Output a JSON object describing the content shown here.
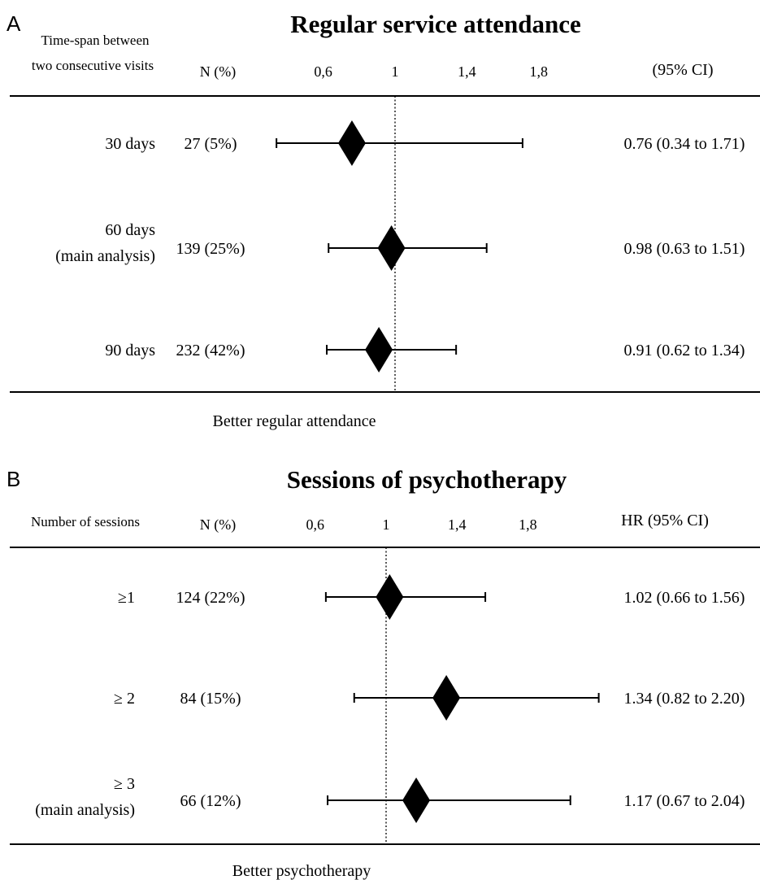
{
  "chart_data": [
    {
      "type": "forest",
      "panel_label": "A",
      "title": "Regular service attendance",
      "row_header_line1": "Time-span between",
      "row_header_line2": "two consecutive visits",
      "n_header": "N (%)",
      "ci_header": "(95% CI)",
      "tick_labels": [
        "0,6",
        "1",
        "1,4",
        "1,8"
      ],
      "ticks": [
        0.6,
        1.0,
        1.4,
        1.8
      ],
      "reference_line": 1.0,
      "footer": "Better regular attendance",
      "rows": [
        {
          "label_line1": "30 days",
          "label_line2": "",
          "n": "27 (5%)",
          "estimate": 0.76,
          "lower": 0.34,
          "upper": 1.71,
          "ci_text": "0.76 (0.34 to 1.71)"
        },
        {
          "label_line1": "60 days",
          "label_line2": "(main analysis)",
          "n": "139 (25%)",
          "estimate": 0.98,
          "lower": 0.63,
          "upper": 1.51,
          "ci_text": "0.98 (0.63 to 1.51)"
        },
        {
          "label_line1": "90 days",
          "label_line2": "",
          "n": "232 (42%)",
          "estimate": 0.91,
          "lower": 0.62,
          "upper": 1.34,
          "ci_text": "0.91 (0.62 to 1.34)"
        }
      ]
    },
    {
      "type": "forest",
      "panel_label": "B",
      "title": "Sessions of psychotherapy",
      "row_header_line1": "Number of sessions",
      "row_header_line2": "",
      "n_header": "N (%)",
      "ci_header": "HR (95% CI)",
      "tick_labels": [
        "0,6",
        "1",
        "1,4",
        "1,8"
      ],
      "ticks": [
        0.6,
        1.0,
        1.4,
        1.8
      ],
      "reference_line": 1.0,
      "footer": "Better psychotherapy",
      "rows": [
        {
          "label_line1": "≥1",
          "label_line2": "",
          "n": "124 (22%)",
          "estimate": 1.02,
          "lower": 0.66,
          "upper": 1.56,
          "ci_text": "1.02 (0.66 to 1.56)"
        },
        {
          "label_line1": "≥ 2",
          "label_line2": "",
          "n": "84 (15%)",
          "estimate": 1.34,
          "lower": 0.82,
          "upper": 2.2,
          "ci_text": "1.34 (0.82 to 2.20)"
        },
        {
          "label_line1": "≥ 3",
          "label_line2": "(main analysis)",
          "n": "66 (12%)",
          "estimate": 1.17,
          "lower": 0.67,
          "upper": 2.04,
          "ci_text": "1.17 (0.67 to 2.04)"
        }
      ]
    }
  ]
}
